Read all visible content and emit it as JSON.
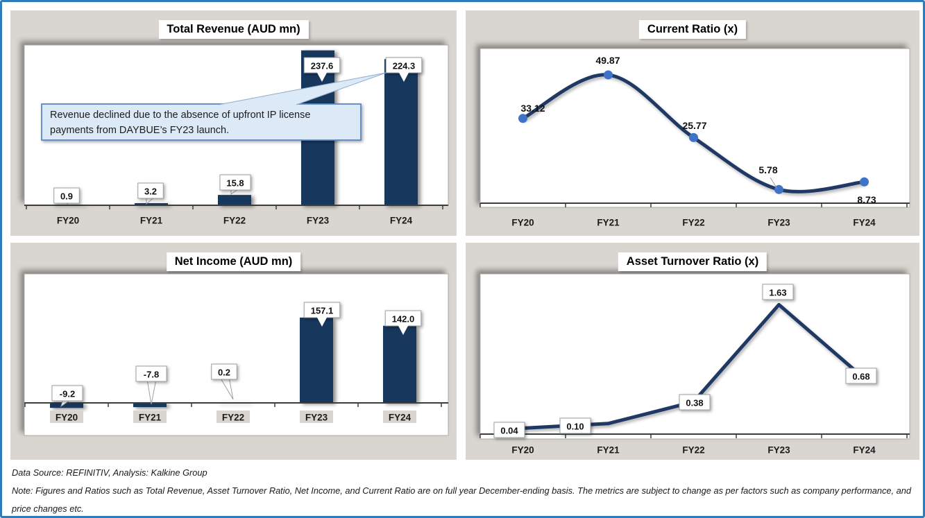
{
  "page": {
    "frame_color": "#2f7cba",
    "panel_bg": "#d9d5d0",
    "bar_color": "#17375d",
    "line_color": "#1f3864",
    "marker_color": "#3e73c8",
    "annotation_fill": "#dce9f6",
    "annotation_border": "#5a87c5"
  },
  "chart_data": [
    {
      "type": "bar",
      "title": "Total Revenue (AUD mn)",
      "categories": [
        "FY20",
        "FY21",
        "FY22",
        "FY23",
        "FY24"
      ],
      "values": [
        0.9,
        3.2,
        15.8,
        237.6,
        224.3
      ],
      "labels": [
        "0.9",
        "3.2",
        "15.8",
        "237.6",
        "224.3"
      ],
      "ylim": [
        0,
        250
      ],
      "grid": false,
      "legend": "none",
      "annotation": {
        "lines": [
          "Revenue declined due to the absence of upfront IP license",
          "payments from DAYBUE’s FY23 launch."
        ]
      }
    },
    {
      "type": "line",
      "title": "Current Ratio (x)",
      "categories": [
        "FY20",
        "FY21",
        "FY22",
        "FY23",
        "FY24"
      ],
      "values": [
        33.12,
        49.87,
        25.77,
        5.78,
        8.73
      ],
      "labels": [
        "33.12",
        "49.87",
        "25.77",
        "5.78",
        "8.73"
      ],
      "ylim": [
        0,
        60
      ],
      "grid": false,
      "legend": "none"
    },
    {
      "type": "bar",
      "title": "Net Income (AUD mn)",
      "categories": [
        "FY20",
        "FY21",
        "FY22",
        "FY23",
        "FY24"
      ],
      "values": [
        -9.2,
        -7.8,
        0.2,
        157.1,
        142.0
      ],
      "labels": [
        "-9.2",
        "-7.8",
        "0.2",
        "157.1",
        "142.0"
      ],
      "ylim": [
        -60,
        240
      ],
      "grid": false,
      "legend": "none"
    },
    {
      "type": "line",
      "title": "Asset Turnover Ratio (x)",
      "categories": [
        "FY20",
        "FY21",
        "FY22",
        "FY23",
        "FY24"
      ],
      "values": [
        0.04,
        0.1,
        0.38,
        1.63,
        0.68
      ],
      "labels": [
        "0.04",
        "0.10",
        "0.38",
        "1.63",
        "0.68"
      ],
      "ylim": [
        0,
        2
      ],
      "grid": false,
      "legend": "none"
    }
  ],
  "footer": {
    "source": "Data Source: REFINITIV, Analysis: Kalkine Group",
    "note": "Note: Figures and Ratios such as Total Revenue, Asset Turnover Ratio, Net Income, and Current Ratio are on full year December-ending basis. The metrics are subject to change as per factors such as company performance, and price changes etc."
  }
}
